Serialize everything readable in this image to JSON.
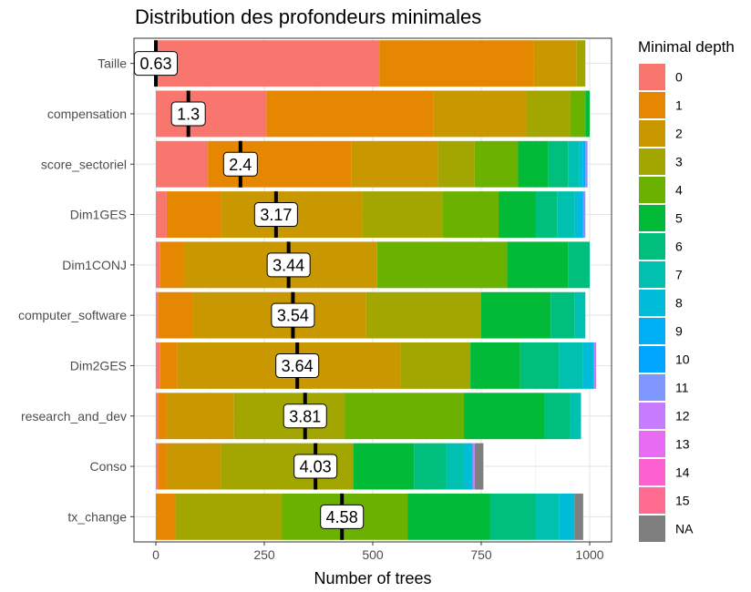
{
  "chart_data": {
    "type": "bar",
    "orientation": "horizontal",
    "stacked": true,
    "title": "Distribution des profondeurs minimales",
    "xlabel": "Number of trees",
    "ylabel": "",
    "xlim": [
      0,
      1000
    ],
    "xticks": [
      0,
      250,
      500,
      750,
      1000
    ],
    "xtick_labels": [
      "0",
      "250",
      "500",
      "750",
      "1000"
    ],
    "grid": true,
    "legend": {
      "title": "Minimal depth",
      "position": "right",
      "entries": [
        {
          "label": "0",
          "color": "#F8766D"
        },
        {
          "label": "1",
          "color": "#E58700"
        },
        {
          "label": "2",
          "color": "#C99800"
        },
        {
          "label": "3",
          "color": "#A3A500"
        },
        {
          "label": "4",
          "color": "#6BB100"
        },
        {
          "label": "5",
          "color": "#00BA38"
        },
        {
          "label": "6",
          "color": "#00BF7D"
        },
        {
          "label": "7",
          "color": "#00C0AF"
        },
        {
          "label": "8",
          "color": "#00BCD8"
        },
        {
          "label": "9",
          "color": "#00B0F6"
        },
        {
          "label": "10",
          "color": "#00A5FF"
        },
        {
          "label": "11",
          "color": "#7F96FF"
        },
        {
          "label": "12",
          "color": "#C77CFF"
        },
        {
          "label": "13",
          "color": "#E76BF3"
        },
        {
          "label": "14",
          "color": "#FD61D1"
        },
        {
          "label": "15",
          "color": "#FF6C91"
        },
        {
          "label": "NA",
          "color": "#7F7F7F"
        }
      ]
    },
    "categories": [
      "Taille",
      "compensation",
      "score_sectoriel",
      "Dim1GES",
      "Dim1CONJ",
      "computer_software",
      "Dim2GES",
      "research_and_dev",
      "Conso",
      "tx_change"
    ],
    "series": [
      {
        "name": "0",
        "values": [
          515,
          255,
          120,
          25,
          10,
          5,
          10,
          5,
          5,
          0
        ]
      },
      {
        "name": "1",
        "values": [
          355,
          385,
          330,
          125,
          55,
          80,
          40,
          20,
          20,
          45
        ]
      },
      {
        "name": "2",
        "values": [
          100,
          215,
          200,
          325,
          445,
          400,
          515,
          155,
          125,
          0
        ]
      },
      {
        "name": "3",
        "values": [
          20,
          100,
          85,
          185,
          0,
          265,
          160,
          255,
          305,
          245
        ]
      },
      {
        "name": "4",
        "values": [
          0,
          35,
          100,
          130,
          300,
          0,
          0,
          275,
          0,
          290
        ]
      },
      {
        "name": "5",
        "values": [
          0,
          10,
          70,
          85,
          140,
          160,
          115,
          185,
          140,
          190
        ]
      },
      {
        "name": "6",
        "values": [
          0,
          0,
          45,
          50,
          50,
          55,
          90,
          60,
          75,
          105
        ]
      },
      {
        "name": "7",
        "values": [
          0,
          0,
          25,
          40,
          0,
          25,
          55,
          25,
          40,
          55
        ]
      },
      {
        "name": "8",
        "values": [
          0,
          0,
          10,
          15,
          0,
          0,
          25,
          0,
          20,
          35
        ]
      },
      {
        "name": "9",
        "values": [
          0,
          0,
          5,
          5,
          0,
          0,
          0,
          0,
          0,
          0
        ]
      },
      {
        "name": "10",
        "values": [
          0,
          0,
          0,
          0,
          0,
          0,
          0,
          0,
          0,
          0
        ]
      },
      {
        "name": "11",
        "values": [
          0,
          0,
          5,
          5,
          0,
          0,
          0,
          0,
          0,
          0
        ]
      },
      {
        "name": "12",
        "values": [
          0,
          0,
          0,
          0,
          0,
          0,
          5,
          0,
          5,
          0
        ]
      },
      {
        "name": "13",
        "values": [
          0,
          0,
          0,
          0,
          0,
          0,
          0,
          0,
          0,
          0
        ]
      },
      {
        "name": "14",
        "values": [
          0,
          0,
          0,
          0,
          0,
          0,
          0,
          0,
          0,
          0
        ]
      },
      {
        "name": "15",
        "values": [
          0,
          0,
          0,
          0,
          0,
          0,
          0,
          0,
          0,
          0
        ]
      },
      {
        "name": "NA",
        "values": [
          0,
          0,
          0,
          0,
          0,
          0,
          0,
          0,
          20,
          20
        ]
      }
    ],
    "mean_minimal_depth": [
      {
        "label": "0.63",
        "value": 0.63,
        "position": 0
      },
      {
        "label": "1.3",
        "value": 1.3,
        "position": 75
      },
      {
        "label": "2.4",
        "value": 2.4,
        "position": 195
      },
      {
        "label": "3.17",
        "value": 3.17,
        "position": 277
      },
      {
        "label": "3.44",
        "value": 3.44,
        "position": 306
      },
      {
        "label": "3.54",
        "value": 3.54,
        "position": 316
      },
      {
        "label": "3.64",
        "value": 3.64,
        "position": 326
      },
      {
        "label": "3.81",
        "value": 3.81,
        "position": 344
      },
      {
        "label": "4.03",
        "value": 4.03,
        "position": 368
      },
      {
        "label": "4.58",
        "value": 4.58,
        "position": 429
      }
    ]
  }
}
